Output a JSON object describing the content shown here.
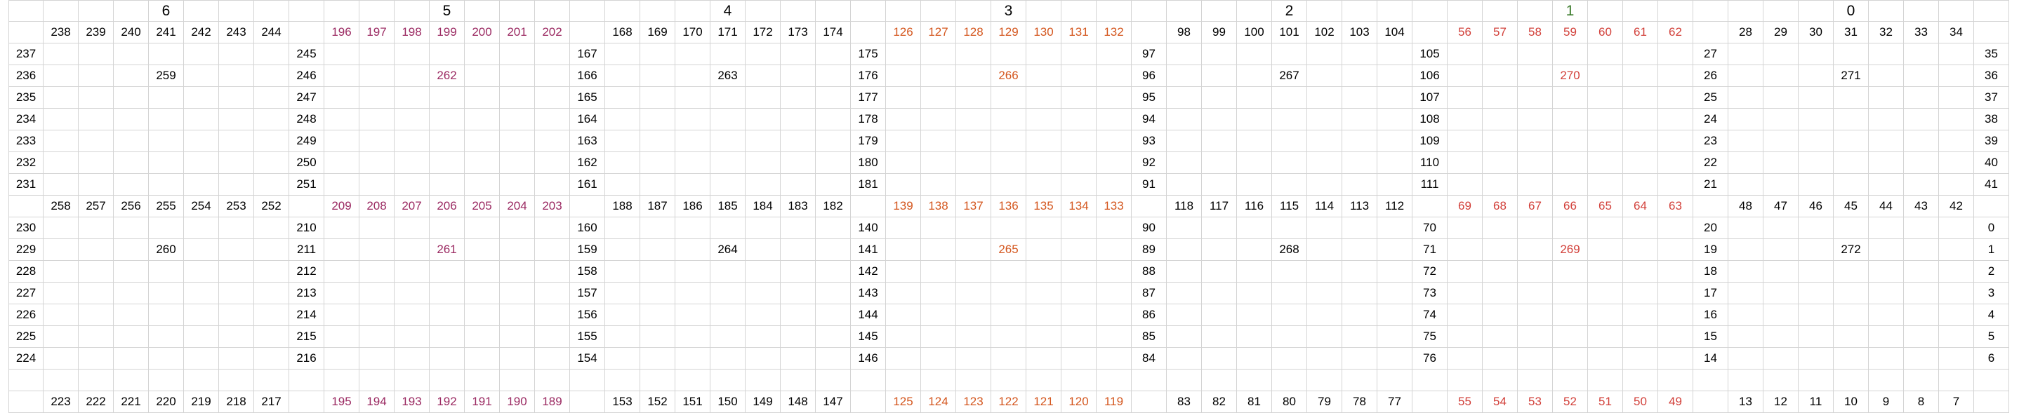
{
  "sheet": {
    "colors": {
      "black": "#000000",
      "purple": "#9b2a62",
      "orange": "#d4571f",
      "red": "#d2403a",
      "green": "#3a7a2a",
      "grid": "#d4d4d4"
    },
    "blocks": [
      {
        "header": "6",
        "header_color": "black",
        "color": "black",
        "top": [
          "238",
          "239",
          "240",
          "241",
          "242",
          "243",
          "244"
        ],
        "left_upper": [
          "237",
          "236",
          "235",
          "234",
          "233",
          "232",
          "231"
        ],
        "right_upper": [
          "245",
          "246",
          "247",
          "248",
          "249",
          "250",
          "251"
        ],
        "mid": [
          "258",
          "257",
          "256",
          "255",
          "254",
          "253",
          "252"
        ],
        "left_lower": [
          "230",
          "229",
          "228",
          "227",
          "226",
          "225",
          "224"
        ],
        "right_lower": [
          "210",
          "211",
          "212",
          "213",
          "214",
          "215",
          "216"
        ],
        "bottom": [
          "223",
          "222",
          "221",
          "220",
          "219",
          "218",
          "217"
        ],
        "upper_inner": "259",
        "lower_inner": "260",
        "inner_col": 3
      },
      {
        "header": "5",
        "header_color": "black",
        "color": "purple",
        "top": [
          "196",
          "197",
          "198",
          "199",
          "200",
          "201",
          "202"
        ],
        "left_upper": [],
        "right_upper": [
          "167",
          "166",
          "165",
          "164",
          "163",
          "162",
          "161"
        ],
        "mid": [
          "209",
          "208",
          "207",
          "206",
          "205",
          "204",
          "203"
        ],
        "left_lower": [],
        "right_lower": [
          "160",
          "159",
          "158",
          "157",
          "156",
          "155",
          "154"
        ],
        "bottom": [
          "195",
          "194",
          "193",
          "192",
          "191",
          "190",
          "189"
        ],
        "upper_inner": "262",
        "lower_inner": "261",
        "inner_col": 3
      },
      {
        "header": "4",
        "header_color": "black",
        "color": "black",
        "top": [
          "168",
          "169",
          "170",
          "171",
          "172",
          "173",
          "174"
        ],
        "left_upper": [],
        "right_upper": [
          "175",
          "176",
          "177",
          "178",
          "179",
          "180",
          "181"
        ],
        "mid": [
          "188",
          "187",
          "186",
          "185",
          "184",
          "183",
          "182"
        ],
        "left_lower": [],
        "right_lower": [
          "140",
          "141",
          "142",
          "143",
          "144",
          "145",
          "146"
        ],
        "bottom": [
          "153",
          "152",
          "151",
          "150",
          "149",
          "148",
          "147"
        ],
        "upper_inner": "263",
        "lower_inner": "264",
        "inner_col": 3
      },
      {
        "header": "3",
        "header_color": "black",
        "color": "orange",
        "top": [
          "126",
          "127",
          "128",
          "129",
          "130",
          "131",
          "132"
        ],
        "left_upper": [],
        "right_upper": [
          "97",
          "96",
          "95",
          "94",
          "93",
          "92",
          "91"
        ],
        "mid": [
          "139",
          "138",
          "137",
          "136",
          "135",
          "134",
          "133"
        ],
        "left_lower": [],
        "right_lower": [
          "90",
          "89",
          "88",
          "87",
          "86",
          "85",
          "84"
        ],
        "bottom": [
          "125",
          "124",
          "123",
          "122",
          "121",
          "120",
          "119"
        ],
        "upper_inner": "266",
        "lower_inner": "265",
        "inner_col": 3
      },
      {
        "header": "2",
        "header_color": "black",
        "color": "black",
        "top": [
          "98",
          "99",
          "100",
          "101",
          "102",
          "103",
          "104"
        ],
        "left_upper": [],
        "right_upper": [
          "105",
          "106",
          "107",
          "108",
          "109",
          "110",
          "111"
        ],
        "mid": [
          "118",
          "117",
          "116",
          "115",
          "114",
          "113",
          "112"
        ],
        "left_lower": [],
        "right_lower": [
          "70",
          "71",
          "72",
          "73",
          "74",
          "75",
          "76"
        ],
        "bottom": [
          "83",
          "82",
          "81",
          "80",
          "79",
          "78",
          "77"
        ],
        "upper_inner": "267",
        "lower_inner": "268",
        "inner_col": 3
      },
      {
        "header": "1",
        "header_color": "green",
        "color": "red",
        "top": [
          "56",
          "57",
          "58",
          "59",
          "60",
          "61",
          "62"
        ],
        "left_upper": [],
        "right_upper": [
          "27",
          "26",
          "25",
          "24",
          "23",
          "22",
          "21"
        ],
        "mid": [
          "69",
          "68",
          "67",
          "66",
          "65",
          "64",
          "63"
        ],
        "left_lower": [],
        "right_lower": [
          "20",
          "19",
          "18",
          "17",
          "16",
          "15",
          "14"
        ],
        "bottom": [
          "55",
          "54",
          "53",
          "52",
          "51",
          "50",
          "49"
        ],
        "upper_inner": "270",
        "lower_inner": "269",
        "inner_col": 3
      },
      {
        "header": "0",
        "header_color": "black",
        "color": "black",
        "top": [
          "28",
          "29",
          "30",
          "31",
          "32",
          "33",
          "34"
        ],
        "left_upper": [],
        "right_upper": [
          "35",
          "36",
          "37",
          "38",
          "39",
          "40",
          "41"
        ],
        "mid": [
          "48",
          "47",
          "46",
          "45",
          "44",
          "43",
          "42"
        ],
        "left_lower": [],
        "right_lower": [
          "0",
          "1",
          "2",
          "3",
          "4",
          "5",
          "6"
        ],
        "bottom": [
          "13",
          "12",
          "11",
          "10",
          "9",
          "8",
          "7"
        ],
        "upper_inner": "271",
        "lower_inner": "272",
        "inner_col": 3
      }
    ]
  }
}
